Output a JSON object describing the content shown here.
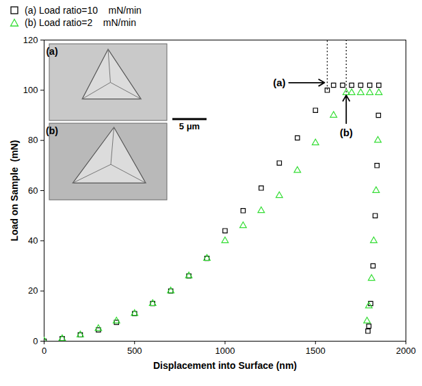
{
  "chart_data": {
    "type": "scatter",
    "x_label": "Displacement into Surface (nm)",
    "y_label": "Load on Sample  (mN)",
    "xlim": [
      0,
      2000
    ],
    "ylim": [
      0,
      120
    ],
    "xticks": [
      0,
      500,
      1000,
      1500,
      2000
    ],
    "yticks": [
      0,
      20,
      40,
      60,
      80,
      100,
      120
    ],
    "legend": "top-left",
    "series": [
      {
        "name": "(a) Load ratio=10    mN/min",
        "color": "#000000",
        "marker": "square",
        "x": [
          0,
          100,
          200,
          300,
          400,
          500,
          600,
          700,
          800,
          900,
          1000,
          1100,
          1200,
          1300,
          1400,
          1500,
          1565,
          1600,
          1650,
          1700,
          1750,
          1800,
          1850,
          1848,
          1840,
          1830,
          1818,
          1805,
          1795,
          1790
        ],
        "values": [
          0,
          1,
          2.5,
          4.5,
          7.5,
          11,
          15,
          20,
          26,
          33,
          44,
          52,
          61,
          71,
          81,
          92,
          100,
          102,
          102,
          102,
          102,
          102,
          102,
          90,
          70,
          50,
          30,
          15,
          6,
          4
        ]
      },
      {
        "name": "(b) Load ratio=2    mN/min",
        "color": "#33dd33",
        "marker": "triangle",
        "x": [
          0,
          100,
          200,
          300,
          400,
          500,
          600,
          700,
          800,
          900,
          1000,
          1100,
          1200,
          1300,
          1400,
          1500,
          1600,
          1670,
          1700,
          1750,
          1800,
          1850,
          1845,
          1835,
          1822,
          1810,
          1795,
          1785
        ],
        "values": [
          0,
          1,
          2.5,
          5,
          8,
          11,
          15,
          20,
          26,
          33,
          40,
          46,
          52,
          58,
          68,
          79,
          90,
          99,
          99,
          99,
          99,
          99,
          80,
          60,
          40,
          25,
          14,
          8
        ]
      }
    ],
    "annotations": [
      {
        "text": "(a)",
        "x": 1300,
        "y": 103,
        "arrow_to": [
          1550,
          103
        ]
      },
      {
        "text": "(b)",
        "x": 1670,
        "y": 83,
        "arrow_to": [
          1670,
          98
        ]
      }
    ],
    "guides": [
      {
        "x": 1565,
        "y": [
          100,
          120
        ]
      },
      {
        "x": 1670,
        "y": [
          99,
          120
        ]
      }
    ],
    "insets": [
      {
        "label": "(a)"
      },
      {
        "label": "(b)"
      }
    ],
    "scale_bar": "5 μm"
  }
}
